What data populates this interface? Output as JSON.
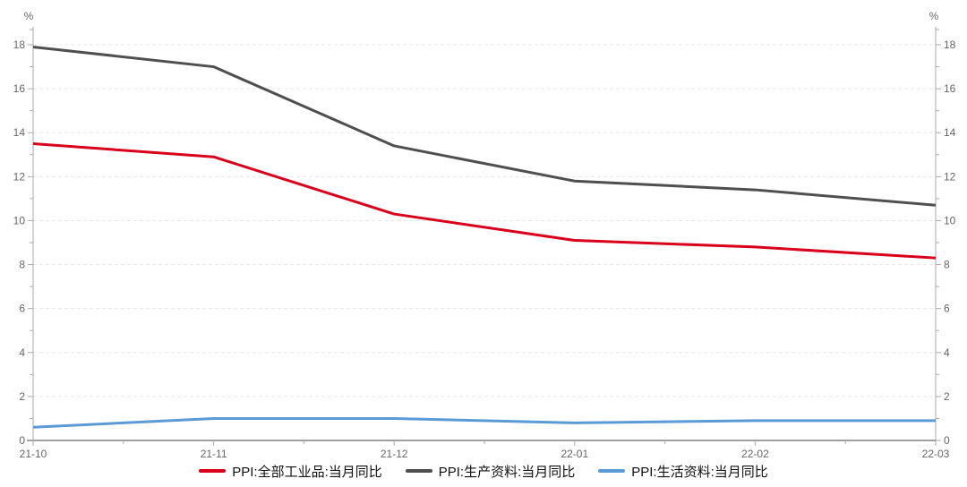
{
  "chart_data": {
    "type": "line",
    "title": "",
    "xlabel": "",
    "ylabel_left": "%",
    "ylabel_right": "%",
    "categories": [
      "21-10",
      "21-11",
      "21-12",
      "22-01",
      "22-02",
      "22-03"
    ],
    "series": [
      {
        "name": "PPI:全部工业品:当月同比",
        "color": "#D9001B",
        "values": [
          13.5,
          12.9,
          10.3,
          9.1,
          8.8,
          8.3
        ]
      },
      {
        "name": "PPI:生产资料:当月同比",
        "color": "#4F4F4F",
        "values": [
          17.9,
          17.0,
          13.4,
          11.8,
          11.4,
          10.7
        ]
      },
      {
        "name": "PPI:生活资料:当月同比",
        "color": "#5B9BD5",
        "values": [
          0.6,
          1.0,
          1.0,
          0.8,
          0.9,
          0.9
        ]
      }
    ],
    "ylim": [
      0,
      18.8
    ],
    "ytick_labeled": [
      0,
      2,
      4,
      6,
      8,
      10,
      12,
      14,
      16,
      18
    ],
    "ytick_minor_step": 1,
    "dual_axis": "mirrored",
    "grid": "horizontal-dashed",
    "legend_position": "bottom-center"
  },
  "style_colors": {
    "grid_line": "#E8E8E8",
    "axis_line": "#AAAAAA",
    "bottom_axis_line": "#A0A0A0",
    "tick_text": "#666666"
  }
}
